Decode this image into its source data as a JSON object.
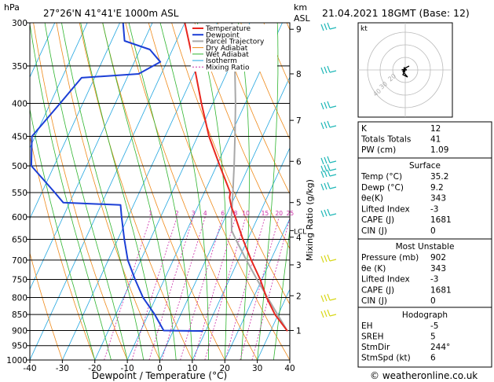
{
  "header": {
    "location": "27°26'N  41°41'E  1000m  ASL",
    "datetime": "21.04.2021  18GMT  (Base: 12)",
    "hpa_label": "hPa",
    "km_label": "km",
    "asl_label": "ASL",
    "mixing_label": "Mixing Ratio (g/kg)",
    "footer": "© weatheronline.co.uk"
  },
  "chart_data": {
    "type": "line",
    "subtype": "skew-T log-P diagram",
    "xlabel": "Dewpoint / Temperature (°C)",
    "ylabel": "hPa",
    "xlim": [
      -40,
      40
    ],
    "ylim": [
      1000,
      300
    ],
    "y_scale": "log",
    "x_ticks": [
      "-40",
      "-30",
      "-20",
      "-10",
      "0",
      "10",
      "20",
      "30",
      "40"
    ],
    "pressure_ticks": [
      300,
      350,
      400,
      450,
      500,
      550,
      600,
      650,
      700,
      750,
      800,
      850,
      900,
      950,
      1000
    ],
    "km_ticks": [
      {
        "label": "9",
        "p": 307
      },
      {
        "label": "8",
        "p": 360
      },
      {
        "label": "7",
        "p": 425
      },
      {
        "label": "6",
        "p": 492
      },
      {
        "label": "5",
        "p": 570
      },
      {
        "label": "4",
        "p": 645
      },
      {
        "label": "3",
        "p": 712
      },
      {
        "label": "2",
        "p": 795
      },
      {
        "label": "1",
        "p": 900
      }
    ],
    "lcl_label": "LCL",
    "lcl_p": 630,
    "mixing_ratio_labels": [
      "1",
      "2",
      "3",
      "4",
      "6",
      "8",
      "10",
      "15",
      "20",
      "25"
    ],
    "legend": [
      {
        "name": "Temperature",
        "color": "#e8271f"
      },
      {
        "name": "Dewpoint",
        "color": "#1c3fd6"
      },
      {
        "name": "Parcel Trajectory",
        "color": "#a8a8a8"
      },
      {
        "name": "Dry Adiabat",
        "color": "#ef8a1a"
      },
      {
        "name": "Wet Adiabat",
        "color": "#2fb52f"
      },
      {
        "name": "Isotherm",
        "color": "#22a6e0"
      },
      {
        "name": "Mixing Ratio",
        "color": "#cc2da8"
      }
    ],
    "series": [
      {
        "name": "Temperature",
        "color": "#e8271f",
        "points": [
          {
            "p": 902,
            "t": 35.2
          },
          {
            "p": 850,
            "t": 29
          },
          {
            "p": 800,
            "t": 24
          },
          {
            "p": 750,
            "t": 19.5
          },
          {
            "p": 700,
            "t": 14
          },
          {
            "p": 650,
            "t": 8.5
          },
          {
            "p": 600,
            "t": 3
          },
          {
            "p": 580,
            "t": 0.5
          },
          {
            "p": 575,
            "t": 0
          },
          {
            "p": 560,
            "t": -1.5
          },
          {
            "p": 550,
            "t": -2
          },
          {
            "p": 500,
            "t": -9
          },
          {
            "p": 450,
            "t": -16.5
          },
          {
            "p": 400,
            "t": -23.5
          },
          {
            "p": 350,
            "t": -31
          },
          {
            "p": 300,
            "t": -40
          }
        ]
      },
      {
        "name": "Dewpoint",
        "color": "#1c3fd6",
        "points": [
          {
            "p": 902,
            "t": 9.2
          },
          {
            "p": 900,
            "t": -3
          },
          {
            "p": 850,
            "t": -8
          },
          {
            "p": 800,
            "t": -14
          },
          {
            "p": 750,
            "t": -19
          },
          {
            "p": 700,
            "t": -24
          },
          {
            "p": 650,
            "t": -28
          },
          {
            "p": 600,
            "t": -32
          },
          {
            "p": 575,
            "t": -34
          },
          {
            "p": 570,
            "t": -52
          },
          {
            "p": 550,
            "t": -56
          },
          {
            "p": 500,
            "t": -67
          },
          {
            "p": 450,
            "t": -71
          },
          {
            "p": 400,
            "t": -67
          },
          {
            "p": 365,
            "t": -64
          },
          {
            "p": 360,
            "t": -47
          },
          {
            "p": 345,
            "t": -42
          },
          {
            "p": 330,
            "t": -47
          },
          {
            "p": 320,
            "t": -56
          },
          {
            "p": 300,
            "t": -59
          }
        ]
      },
      {
        "name": "Parcel Trajectory",
        "color": "#a8a8a8",
        "points": [
          {
            "p": 902,
            "t": 35.2
          },
          {
            "p": 850,
            "t": 29.8
          },
          {
            "p": 800,
            "t": 24.3
          },
          {
            "p": 750,
            "t": 18.5
          },
          {
            "p": 700,
            "t": 12.5
          },
          {
            "p": 650,
            "t": 6.3
          },
          {
            "p": 630,
            "t": 3.8
          },
          {
            "p": 600,
            "t": 1.8
          },
          {
            "p": 550,
            "t": -1.2
          },
          {
            "p": 500,
            "t": -4.6
          },
          {
            "p": 450,
            "t": -8.5
          },
          {
            "p": 400,
            "t": -13
          },
          {
            "p": 350,
            "t": -18.5
          },
          {
            "p": 300,
            "t": -25.5
          }
        ]
      }
    ]
  },
  "hodograph": {
    "label": "kt",
    "ring_labels": [
      "40",
      "30",
      "20"
    ]
  },
  "indices": {
    "rows": [
      {
        "label": "K",
        "value": "12"
      },
      {
        "label": "Totals Totals",
        "value": "41"
      },
      {
        "label": "PW (cm)",
        "value": "1.09"
      }
    ]
  },
  "surface": {
    "title": "Surface",
    "rows": [
      {
        "label": "Temp (°C)",
        "value": "35.2"
      },
      {
        "label": "Dewp (°C)",
        "value": "9.2"
      },
      {
        "label": "θe(K)",
        "value": "343"
      },
      {
        "label": "Lifted Index",
        "value": "-3"
      },
      {
        "label": "CAPE (J)",
        "value": "1681"
      },
      {
        "label": "CIN (J)",
        "value": "0"
      }
    ]
  },
  "most_unstable": {
    "title": "Most Unstable",
    "rows": [
      {
        "label": "Pressure (mb)",
        "value": "902"
      },
      {
        "label": "θe (K)",
        "value": "343"
      },
      {
        "label": "Lifted Index",
        "value": "-3"
      },
      {
        "label": "CAPE (J)",
        "value": "1681"
      },
      {
        "label": "CIN (J)",
        "value": "0"
      }
    ]
  },
  "hodograph_table": {
    "title": "Hodograph",
    "rows": [
      {
        "label": "EH",
        "value": "-5"
      },
      {
        "label": "SREH",
        "value": "5"
      },
      {
        "label": "StmDir",
        "value": "244°"
      },
      {
        "label": "StmSpd (kt)",
        "value": "6"
      }
    ]
  },
  "colors": {
    "wind_upper": "#21b8b8",
    "wind_lower": "#d8d81a"
  }
}
